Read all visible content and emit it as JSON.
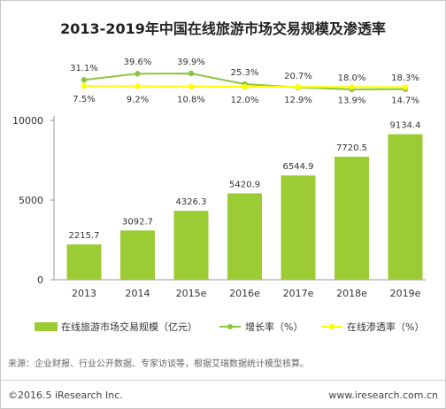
{
  "chart_data": {
    "type": "bar",
    "title": "2013-2019年中国在线旅游市场交易规模及渗透率",
    "categories": [
      "2013",
      "2014",
      "2015e",
      "2016e",
      "2017e",
      "2018e",
      "2019e"
    ],
    "series": [
      {
        "name": "在线旅游市场交易规模（亿元）",
        "type": "bar",
        "values": [
          2215.7,
          3092.7,
          4326.3,
          5420.9,
          6544.9,
          7720.5,
          9134.4
        ],
        "color": "#9ccc33"
      },
      {
        "name": "增长率（%）",
        "type": "line",
        "values": [
          31.1,
          39.6,
          39.9,
          25.3,
          20.7,
          18.0,
          18.3
        ],
        "color": "#8cc63f"
      },
      {
        "name": "在线渗透率（%）",
        "type": "line",
        "values": [
          7.5,
          9.2,
          10.8,
          12.0,
          12.9,
          13.9,
          14.7
        ],
        "color": "#ffff00"
      }
    ],
    "y_ticks": [
      0,
      5000,
      10000
    ],
    "ylim": [
      0,
      10000
    ],
    "grid": false,
    "legend_position": "bottom"
  },
  "footer": {
    "source": "来源：企业财报、行业公开数据、专家访谈等，根据艾瑞数据统计模型核算。",
    "copyright": "©2016.5 iResearch Inc.",
    "website": "www.iresearch.com.cn"
  }
}
